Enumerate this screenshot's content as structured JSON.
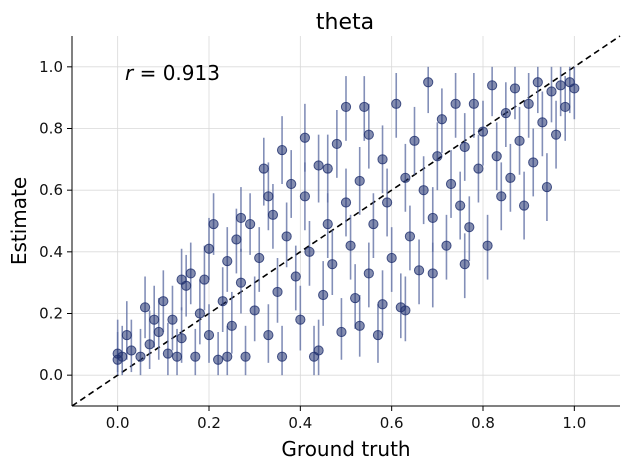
{
  "chart_data": {
    "type": "scatter",
    "title": "theta",
    "xlabel": "Ground truth",
    "ylabel": "Estimate",
    "xlim": [
      -0.1,
      1.1
    ],
    "ylim": [
      -0.1,
      1.1
    ],
    "xticks": [
      0.0,
      0.2,
      0.4,
      0.6,
      0.8,
      1.0
    ],
    "yticks": [
      0.0,
      0.2,
      0.4,
      0.6,
      0.8,
      1.0
    ],
    "xtick_labels": [
      "0.0",
      "0.2",
      "0.4",
      "0.6",
      "0.8",
      "1.0"
    ],
    "ytick_labels": [
      "0.0",
      "0.2",
      "0.4",
      "0.6",
      "0.8",
      "1.0"
    ],
    "grid": true,
    "annotation": {
      "var": "r",
      "text": " = 0.913"
    },
    "reference_line": {
      "style": "dashed",
      "color": "#000000",
      "from": [
        -0.1,
        -0.1
      ],
      "to": [
        1.1,
        1.1
      ]
    },
    "marker_color": "#1f2f6e",
    "errorbar_color": "#5a6aa0",
    "points": [
      {
        "x": 0.0,
        "y": 0.05,
        "lo": 0.0,
        "hi": 0.14
      },
      {
        "x": 0.0,
        "y": 0.07,
        "lo": 0.01,
        "hi": 0.18
      },
      {
        "x": 0.01,
        "y": 0.06,
        "lo": 0.0,
        "hi": 0.16
      },
      {
        "x": 0.02,
        "y": 0.13,
        "lo": 0.05,
        "hi": 0.24
      },
      {
        "x": 0.03,
        "y": 0.08,
        "lo": 0.01,
        "hi": 0.18
      },
      {
        "x": 0.05,
        "y": 0.06,
        "lo": 0.0,
        "hi": 0.15
      },
      {
        "x": 0.06,
        "y": 0.22,
        "lo": 0.12,
        "hi": 0.32
      },
      {
        "x": 0.07,
        "y": 0.1,
        "lo": 0.02,
        "hi": 0.21
      },
      {
        "x": 0.09,
        "y": 0.14,
        "lo": 0.05,
        "hi": 0.25
      },
      {
        "x": 0.1,
        "y": 0.24,
        "lo": 0.14,
        "hi": 0.34
      },
      {
        "x": 0.11,
        "y": 0.07,
        "lo": 0.0,
        "hi": 0.17
      },
      {
        "x": 0.12,
        "y": 0.18,
        "lo": 0.08,
        "hi": 0.29
      },
      {
        "x": 0.13,
        "y": 0.06,
        "lo": 0.0,
        "hi": 0.15
      },
      {
        "x": 0.14,
        "y": 0.12,
        "lo": 0.04,
        "hi": 0.22
      },
      {
        "x": 0.15,
        "y": 0.29,
        "lo": 0.19,
        "hi": 0.39
      },
      {
        "x": 0.16,
        "y": 0.33,
        "lo": 0.23,
        "hi": 0.43
      },
      {
        "x": 0.17,
        "y": 0.06,
        "lo": 0.0,
        "hi": 0.15
      },
      {
        "x": 0.18,
        "y": 0.2,
        "lo": 0.1,
        "hi": 0.31
      },
      {
        "x": 0.19,
        "y": 0.31,
        "lo": 0.21,
        "hi": 0.42
      },
      {
        "x": 0.2,
        "y": 0.41,
        "lo": 0.31,
        "hi": 0.51
      },
      {
        "x": 0.2,
        "y": 0.13,
        "lo": 0.04,
        "hi": 0.23
      },
      {
        "x": 0.21,
        "y": 0.49,
        "lo": 0.39,
        "hi": 0.59
      },
      {
        "x": 0.22,
        "y": 0.05,
        "lo": 0.0,
        "hi": 0.14
      },
      {
        "x": 0.23,
        "y": 0.24,
        "lo": 0.14,
        "hi": 0.35
      },
      {
        "x": 0.24,
        "y": 0.37,
        "lo": 0.27,
        "hi": 0.48
      },
      {
        "x": 0.25,
        "y": 0.16,
        "lo": 0.07,
        "hi": 0.27
      },
      {
        "x": 0.26,
        "y": 0.44,
        "lo": 0.33,
        "hi": 0.54
      },
      {
        "x": 0.27,
        "y": 0.3,
        "lo": 0.2,
        "hi": 0.41
      },
      {
        "x": 0.28,
        "y": 0.06,
        "lo": 0.0,
        "hi": 0.16
      },
      {
        "x": 0.29,
        "y": 0.49,
        "lo": 0.39,
        "hi": 0.59
      },
      {
        "x": 0.3,
        "y": 0.21,
        "lo": 0.11,
        "hi": 0.32
      },
      {
        "x": 0.31,
        "y": 0.38,
        "lo": 0.27,
        "hi": 0.48
      },
      {
        "x": 0.32,
        "y": 0.67,
        "lo": 0.55,
        "hi": 0.77
      },
      {
        "x": 0.33,
        "y": 0.13,
        "lo": 0.04,
        "hi": 0.23
      },
      {
        "x": 0.34,
        "y": 0.52,
        "lo": 0.41,
        "hi": 0.62
      },
      {
        "x": 0.35,
        "y": 0.27,
        "lo": 0.17,
        "hi": 0.38
      },
      {
        "x": 0.36,
        "y": 0.06,
        "lo": 0.0,
        "hi": 0.16
      },
      {
        "x": 0.37,
        "y": 0.45,
        "lo": 0.35,
        "hi": 0.56
      },
      {
        "x": 0.38,
        "y": 0.62,
        "lo": 0.51,
        "hi": 0.73
      },
      {
        "x": 0.39,
        "y": 0.32,
        "lo": 0.21,
        "hi": 0.42
      },
      {
        "x": 0.4,
        "y": 0.18,
        "lo": 0.08,
        "hi": 0.29
      },
      {
        "x": 0.41,
        "y": 0.58,
        "lo": 0.47,
        "hi": 0.69
      },
      {
        "x": 0.42,
        "y": 0.4,
        "lo": 0.29,
        "hi": 0.5
      },
      {
        "x": 0.43,
        "y": 0.06,
        "lo": 0.0,
        "hi": 0.16
      },
      {
        "x": 0.44,
        "y": 0.68,
        "lo": 0.56,
        "hi": 0.78
      },
      {
        "x": 0.45,
        "y": 0.26,
        "lo": 0.16,
        "hi": 0.37
      },
      {
        "x": 0.46,
        "y": 0.49,
        "lo": 0.38,
        "hi": 0.59
      },
      {
        "x": 0.47,
        "y": 0.36,
        "lo": 0.26,
        "hi": 0.47
      },
      {
        "x": 0.48,
        "y": 0.75,
        "lo": 0.64,
        "hi": 0.86
      },
      {
        "x": 0.49,
        "y": 0.14,
        "lo": 0.05,
        "hi": 0.25
      },
      {
        "x": 0.5,
        "y": 0.56,
        "lo": 0.45,
        "hi": 0.67
      },
      {
        "x": 0.51,
        "y": 0.42,
        "lo": 0.31,
        "hi": 0.52
      },
      {
        "x": 0.52,
        "y": 0.25,
        "lo": 0.15,
        "hi": 0.36
      },
      {
        "x": 0.53,
        "y": 0.63,
        "lo": 0.52,
        "hi": 0.74
      },
      {
        "x": 0.54,
        "y": 0.87,
        "lo": 0.76,
        "hi": 0.97
      },
      {
        "x": 0.55,
        "y": 0.33,
        "lo": 0.22,
        "hi": 0.43
      },
      {
        "x": 0.56,
        "y": 0.49,
        "lo": 0.38,
        "hi": 0.59
      },
      {
        "x": 0.57,
        "y": 0.13,
        "lo": 0.04,
        "hi": 0.23
      },
      {
        "x": 0.58,
        "y": 0.7,
        "lo": 0.59,
        "hi": 0.81
      },
      {
        "x": 0.59,
        "y": 0.56,
        "lo": 0.45,
        "hi": 0.67
      },
      {
        "x": 0.6,
        "y": 0.38,
        "lo": 0.27,
        "hi": 0.48
      },
      {
        "x": 0.61,
        "y": 0.88,
        "lo": 0.77,
        "hi": 0.98
      },
      {
        "x": 0.62,
        "y": 0.22,
        "lo": 0.12,
        "hi": 0.33
      },
      {
        "x": 0.63,
        "y": 0.64,
        "lo": 0.53,
        "hi": 0.75
      },
      {
        "x": 0.64,
        "y": 0.45,
        "lo": 0.34,
        "hi": 0.55
      },
      {
        "x": 0.65,
        "y": 0.76,
        "lo": 0.65,
        "hi": 0.87
      },
      {
        "x": 0.66,
        "y": 0.34,
        "lo": 0.23,
        "hi": 0.44
      },
      {
        "x": 0.67,
        "y": 0.6,
        "lo": 0.49,
        "hi": 0.71
      },
      {
        "x": 0.68,
        "y": 0.95,
        "lo": 0.85,
        "hi": 1.0
      },
      {
        "x": 0.69,
        "y": 0.51,
        "lo": 0.4,
        "hi": 0.61
      },
      {
        "x": 0.7,
        "y": 0.71,
        "lo": 0.6,
        "hi": 0.82
      },
      {
        "x": 0.71,
        "y": 0.83,
        "lo": 0.72,
        "hi": 0.93
      },
      {
        "x": 0.72,
        "y": 0.42,
        "lo": 0.31,
        "hi": 0.52
      },
      {
        "x": 0.73,
        "y": 0.62,
        "lo": 0.51,
        "hi": 0.73
      },
      {
        "x": 0.74,
        "y": 0.88,
        "lo": 0.77,
        "hi": 0.98
      },
      {
        "x": 0.75,
        "y": 0.55,
        "lo": 0.44,
        "hi": 0.66
      },
      {
        "x": 0.76,
        "y": 0.74,
        "lo": 0.63,
        "hi": 0.85
      },
      {
        "x": 0.77,
        "y": 0.48,
        "lo": 0.37,
        "hi": 0.58
      },
      {
        "x": 0.78,
        "y": 0.88,
        "lo": 0.77,
        "hi": 0.98
      },
      {
        "x": 0.79,
        "y": 0.67,
        "lo": 0.56,
        "hi": 0.78
      },
      {
        "x": 0.8,
        "y": 0.79,
        "lo": 0.68,
        "hi": 0.89
      },
      {
        "x": 0.81,
        "y": 0.42,
        "lo": 0.31,
        "hi": 0.52
      },
      {
        "x": 0.82,
        "y": 0.94,
        "lo": 0.84,
        "hi": 1.0
      },
      {
        "x": 0.83,
        "y": 0.71,
        "lo": 0.6,
        "hi": 0.82
      },
      {
        "x": 0.84,
        "y": 0.58,
        "lo": 0.47,
        "hi": 0.69
      },
      {
        "x": 0.85,
        "y": 0.85,
        "lo": 0.74,
        "hi": 0.95
      },
      {
        "x": 0.86,
        "y": 0.64,
        "lo": 0.53,
        "hi": 0.75
      },
      {
        "x": 0.87,
        "y": 0.93,
        "lo": 0.83,
        "hi": 1.0
      },
      {
        "x": 0.88,
        "y": 0.76,
        "lo": 0.65,
        "hi": 0.87
      },
      {
        "x": 0.89,
        "y": 0.55,
        "lo": 0.44,
        "hi": 0.66
      },
      {
        "x": 0.9,
        "y": 0.88,
        "lo": 0.77,
        "hi": 0.98
      },
      {
        "x": 0.91,
        "y": 0.69,
        "lo": 0.58,
        "hi": 0.8
      },
      {
        "x": 0.92,
        "y": 0.95,
        "lo": 0.85,
        "hi": 1.0
      },
      {
        "x": 0.93,
        "y": 0.82,
        "lo": 0.71,
        "hi": 0.92
      },
      {
        "x": 0.94,
        "y": 0.61,
        "lo": 0.5,
        "hi": 0.72
      },
      {
        "x": 0.95,
        "y": 0.92,
        "lo": 0.82,
        "hi": 1.0
      },
      {
        "x": 0.96,
        "y": 0.78,
        "lo": 0.67,
        "hi": 0.89
      },
      {
        "x": 0.97,
        "y": 0.94,
        "lo": 0.84,
        "hi": 1.0
      },
      {
        "x": 0.98,
        "y": 0.87,
        "lo": 0.76,
        "hi": 0.97
      },
      {
        "x": 0.99,
        "y": 0.95,
        "lo": 0.85,
        "hi": 1.0
      },
      {
        "x": 1.0,
        "y": 0.93,
        "lo": 0.83,
        "hi": 1.0
      },
      {
        "x": 0.58,
        "y": 0.23,
        "lo": 0.13,
        "hi": 0.34
      },
      {
        "x": 0.63,
        "y": 0.21,
        "lo": 0.11,
        "hi": 0.32
      },
      {
        "x": 0.69,
        "y": 0.33,
        "lo": 0.22,
        "hi": 0.43
      },
      {
        "x": 0.76,
        "y": 0.36,
        "lo": 0.25,
        "hi": 0.46
      },
      {
        "x": 0.36,
        "y": 0.73,
        "lo": 0.62,
        "hi": 0.84
      },
      {
        "x": 0.41,
        "y": 0.77,
        "lo": 0.66,
        "hi": 0.88
      },
      {
        "x": 0.5,
        "y": 0.87,
        "lo": 0.76,
        "hi": 0.97
      },
      {
        "x": 0.14,
        "y": 0.31,
        "lo": 0.21,
        "hi": 0.41
      },
      {
        "x": 0.08,
        "y": 0.18,
        "lo": 0.09,
        "hi": 0.29
      },
      {
        "x": 0.24,
        "y": 0.06,
        "lo": 0.0,
        "hi": 0.16
      },
      {
        "x": 0.44,
        "y": 0.08,
        "lo": 0.0,
        "hi": 0.18
      },
      {
        "x": 0.53,
        "y": 0.16,
        "lo": 0.06,
        "hi": 0.26
      },
      {
        "x": 0.27,
        "y": 0.51,
        "lo": 0.4,
        "hi": 0.61
      },
      {
        "x": 0.33,
        "y": 0.58,
        "lo": 0.47,
        "hi": 0.69
      },
      {
        "x": 0.46,
        "y": 0.67,
        "lo": 0.56,
        "hi": 0.78
      },
      {
        "x": 0.55,
        "y": 0.78,
        "lo": 0.67,
        "hi": 0.88
      }
    ]
  }
}
